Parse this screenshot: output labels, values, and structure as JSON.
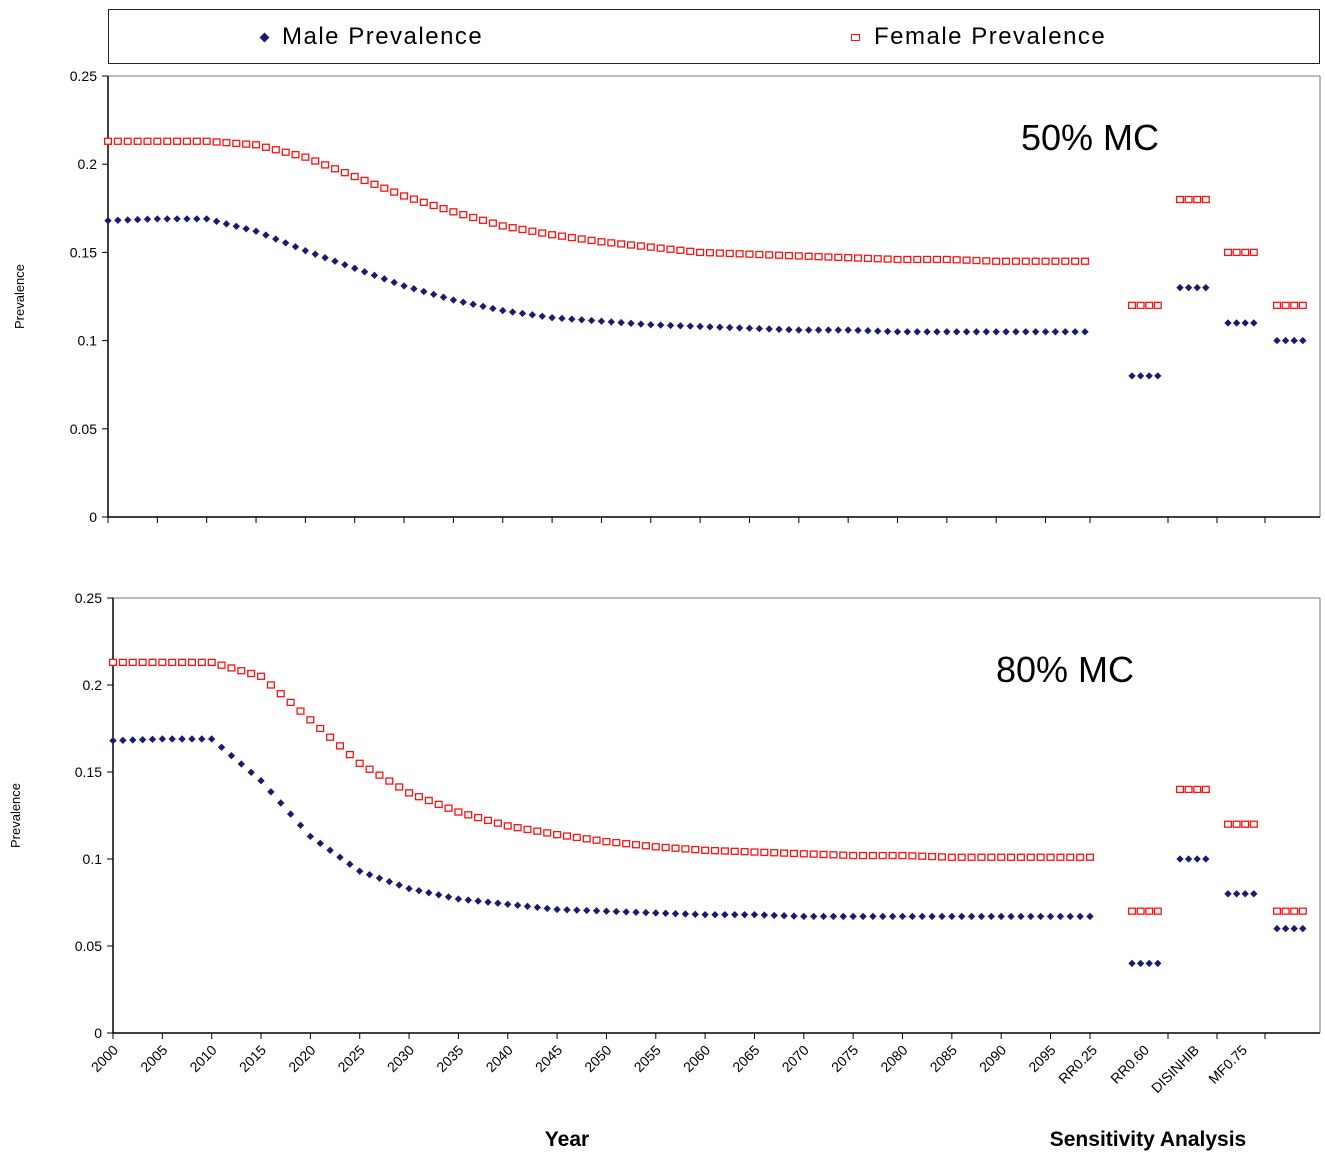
{
  "legend": {
    "male_label": "Male Prevalence",
    "female_label": "Female Prevalence",
    "male_color": "#1a1a6e",
    "female_color": "#ff1010"
  },
  "x_axis": {
    "title": "Year",
    "sensitivity_title": "Sensitivity Analysis",
    "year_ticks": [
      "2000",
      "2005",
      "2010",
      "2015",
      "2020",
      "2025",
      "2030",
      "2035",
      "2040",
      "2045",
      "2050",
      "2055",
      "2060",
      "2065",
      "2070",
      "2075",
      "2080",
      "2085",
      "2090",
      "2095"
    ],
    "sensitivity_ticks": [
      "RR0.25",
      "RR0.60",
      "DISINHIB",
      "MF0.75"
    ]
  },
  "chart_data": [
    {
      "type": "scatter",
      "annotation": "50% MC",
      "ylabel": "Prevalence",
      "ylim": [
        0,
        0.25
      ],
      "yticks": [
        "0",
        "0.05",
        "0.1",
        "0.15",
        "0.2",
        "0.25"
      ],
      "grid": false,
      "legend_position": "top",
      "series": [
        {
          "name": "Male Prevalence",
          "x": [
            2000,
            2005,
            2010,
            2015,
            2020,
            2025,
            2030,
            2035,
            2040,
            2045,
            2050,
            2055,
            2060,
            2065,
            2070,
            2075,
            2080,
            2085,
            2090,
            2095,
            2099
          ],
          "values": [
            0.168,
            0.169,
            0.169,
            0.162,
            0.151,
            0.141,
            0.131,
            0.123,
            0.117,
            0.113,
            0.111,
            0.109,
            0.108,
            0.107,
            0.106,
            0.106,
            0.105,
            0.105,
            0.105,
            0.105,
            0.105
          ],
          "sensitivity": {
            "RR0.25": 0.08,
            "RR0.60": 0.13,
            "DISINHIB": 0.11,
            "MF0.75": 0.1
          }
        },
        {
          "name": "Female Prevalence",
          "x": [
            2000,
            2005,
            2010,
            2015,
            2020,
            2025,
            2030,
            2035,
            2040,
            2045,
            2050,
            2055,
            2060,
            2065,
            2070,
            2075,
            2080,
            2085,
            2090,
            2095,
            2099
          ],
          "values": [
            0.213,
            0.213,
            0.213,
            0.211,
            0.204,
            0.193,
            0.182,
            0.173,
            0.165,
            0.16,
            0.156,
            0.153,
            0.15,
            0.149,
            0.148,
            0.147,
            0.146,
            0.146,
            0.145,
            0.145,
            0.145
          ],
          "sensitivity": {
            "RR0.25": 0.12,
            "RR0.60": 0.18,
            "DISINHIB": 0.15,
            "MF0.75": 0.12
          }
        }
      ]
    },
    {
      "type": "scatter",
      "annotation": "80% MC",
      "ylabel": "Prevalence",
      "ylim": [
        0,
        0.25
      ],
      "yticks": [
        "0",
        "0.05",
        "0.1",
        "0.15",
        "0.2",
        "0.25"
      ],
      "grid": false,
      "series": [
        {
          "name": "Male Prevalence",
          "x": [
            2000,
            2005,
            2010,
            2015,
            2020,
            2025,
            2030,
            2035,
            2040,
            2045,
            2050,
            2055,
            2060,
            2065,
            2070,
            2075,
            2080,
            2085,
            2090,
            2095,
            2099
          ],
          "values": [
            0.168,
            0.169,
            0.169,
            0.145,
            0.113,
            0.093,
            0.083,
            0.077,
            0.074,
            0.071,
            0.07,
            0.069,
            0.068,
            0.068,
            0.067,
            0.067,
            0.067,
            0.067,
            0.067,
            0.067,
            0.067
          ],
          "sensitivity": {
            "RR0.25": 0.04,
            "RR0.60": 0.1,
            "DISINHIB": 0.08,
            "MF0.75": 0.06
          }
        },
        {
          "name": "Female Prevalence",
          "x": [
            2000,
            2005,
            2010,
            2015,
            2020,
            2025,
            2030,
            2035,
            2040,
            2045,
            2050,
            2055,
            2060,
            2065,
            2070,
            2075,
            2080,
            2085,
            2090,
            2095,
            2099
          ],
          "values": [
            0.213,
            0.213,
            0.213,
            0.205,
            0.18,
            0.155,
            0.138,
            0.127,
            0.119,
            0.114,
            0.11,
            0.107,
            0.105,
            0.104,
            0.103,
            0.102,
            0.102,
            0.101,
            0.101,
            0.101,
            0.101
          ],
          "sensitivity": {
            "RR0.25": 0.07,
            "RR0.60": 0.14,
            "DISINHIB": 0.12,
            "MF0.75": 0.07
          }
        }
      ]
    }
  ]
}
